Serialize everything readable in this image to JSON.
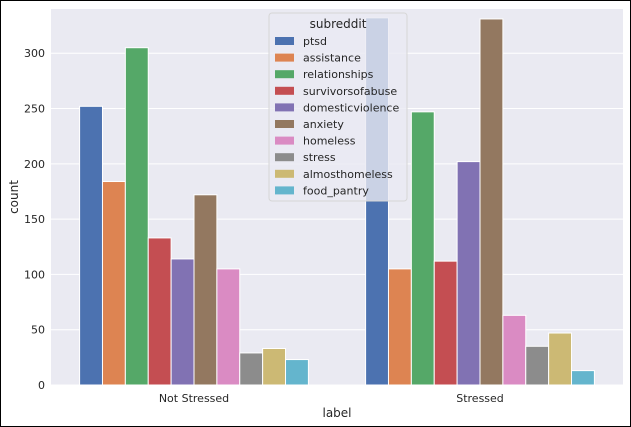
{
  "chart_data": {
    "type": "bar",
    "categories": [
      "Not Stressed",
      "Stressed"
    ],
    "xlabel": "label",
    "ylabel": "count",
    "ylim": [
      0,
      340
    ],
    "yticks": [
      0,
      50,
      100,
      150,
      200,
      250,
      300
    ],
    "grid": true,
    "legend": {
      "title": "subreddit",
      "placement": "top-center"
    },
    "series": [
      {
        "name": "ptsd",
        "values": [
          252,
          332
        ],
        "color": "#4c72b0"
      },
      {
        "name": "assistance",
        "values": [
          184,
          105
        ],
        "color": "#dd8452"
      },
      {
        "name": "relationships",
        "values": [
          305,
          247
        ],
        "color": "#55a868"
      },
      {
        "name": "survivorsofabuse",
        "values": [
          133,
          112
        ],
        "color": "#c44e52"
      },
      {
        "name": "domesticviolence",
        "values": [
          114,
          202
        ],
        "color": "#8172b3"
      },
      {
        "name": "anxiety",
        "values": [
          172,
          331
        ],
        "color": "#937860"
      },
      {
        "name": "homeless",
        "values": [
          105,
          63
        ],
        "color": "#da8bc3"
      },
      {
        "name": "stress",
        "values": [
          29,
          35
        ],
        "color": "#8c8c8c"
      },
      {
        "name": "almosthomeless",
        "values": [
          33,
          47
        ],
        "color": "#ccb974"
      },
      {
        "name": "food_pantry",
        "values": [
          23,
          13
        ],
        "color": "#64b5cd"
      }
    ]
  }
}
